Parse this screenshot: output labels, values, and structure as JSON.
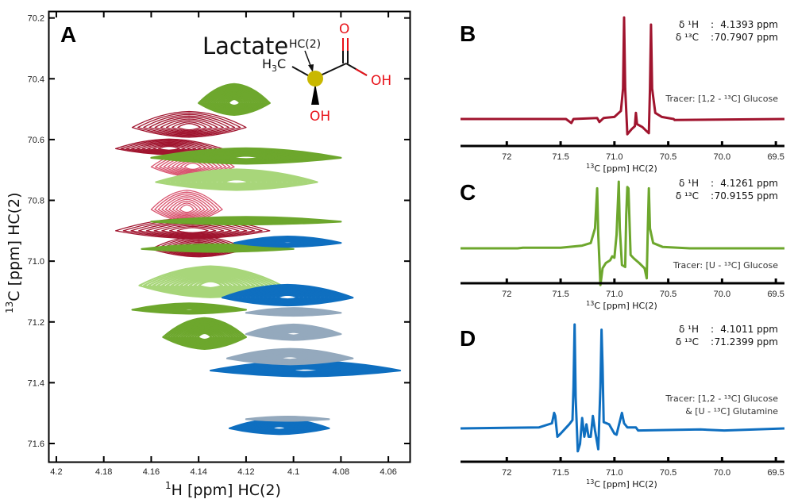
{
  "chart_data": [
    {
      "id": "A",
      "type": "contour",
      "panel_label": "A",
      "title": "Lactate",
      "xlabel": "1H [ppm] HC(2)",
      "xlabel_parts": {
        "sup": "1",
        "rest": "H [ppm] HC(2)"
      },
      "ylabel": "13C [ppm] HC(2)",
      "ylabel_parts": {
        "sup": "13",
        "rest": "C [ppm] HC(2)"
      },
      "xlim": [
        4.203,
        4.051
      ],
      "ylim": [
        70.18,
        71.66
      ],
      "x_reversed": true,
      "y_reversed": true,
      "xticks": [
        "4.2",
        "4.18",
        "4.16",
        "4.14",
        "4.12",
        "4.1",
        "4.08",
        "4.06"
      ],
      "xtick_values": [
        4.2,
        4.18,
        4.16,
        4.14,
        4.12,
        4.1,
        4.08,
        4.06
      ],
      "yticks": [
        "70.2",
        "70.4",
        "70.6",
        "70.8",
        "71.0",
        "71.2",
        "71.4",
        "71.6"
      ],
      "ytick_values": [
        70.2,
        70.4,
        70.6,
        70.8,
        71.0,
        71.2,
        71.4,
        71.6
      ],
      "series": [
        {
          "name": "[1,2-13C] Glucose (dark)",
          "color": "#a0142e",
          "style": "lines",
          "bands": [
            {
              "c13": 70.56,
              "h_left": 4.168,
              "h_right": 4.12,
              "thick": 0.05
            },
            {
              "c13": 70.63,
              "h_left": 4.175,
              "h_right": 4.13,
              "thick": 0.03
            },
            {
              "c13": 70.9,
              "h_left": 4.175,
              "h_right": 4.11,
              "thick": 0.04
            },
            {
              "c13": 70.96,
              "h_left": 4.16,
              "h_right": 4.12,
              "thick": 0.04
            }
          ]
        },
        {
          "name": "[1,2-13C] Glucose (light)",
          "color": "#d9546f",
          "style": "lines",
          "bands": [
            {
              "c13": 70.69,
              "h_left": 4.16,
              "h_right": 4.125,
              "thick": 0.05
            },
            {
              "c13": 70.83,
              "h_left": 4.16,
              "h_right": 4.13,
              "thick": 0.06
            }
          ]
        },
        {
          "name": "[U-13C] Glucose (dark)",
          "color": "#6da72d",
          "style": "fill",
          "bands": [
            {
              "c13": 70.48,
              "h_left": 4.14,
              "h_right": 4.11,
              "thick": 0.06
            },
            {
              "c13": 70.66,
              "h_left": 4.16,
              "h_right": 4.08,
              "thick": 0.03
            },
            {
              "c13": 70.87,
              "h_left": 4.16,
              "h_right": 4.08,
              "thick": 0.015
            },
            {
              "c13": 70.96,
              "h_left": 4.164,
              "h_right": 4.1,
              "thick": 0.015
            },
            {
              "c13": 71.16,
              "h_left": 4.168,
              "h_right": 4.12,
              "thick": 0.02
            },
            {
              "c13": 71.25,
              "h_left": 4.155,
              "h_right": 4.12,
              "thick": 0.06
            }
          ]
        },
        {
          "name": "[U-13C] Glucose (light)",
          "color": "#a8d67a",
          "style": "fill",
          "bands": [
            {
              "c13": 70.74,
              "h_left": 4.158,
              "h_right": 4.09,
              "thick": 0.04
            },
            {
              "c13": 71.08,
              "h_left": 4.165,
              "h_right": 4.105,
              "thick": 0.06
            }
          ]
        },
        {
          "name": "[1,2-13C] Glucose & [U-13C] Glutamine (dark)",
          "color": "#0f6fc0",
          "style": "fill",
          "bands": [
            {
              "c13": 70.94,
              "h_left": 4.125,
              "h_right": 4.08,
              "thick": 0.02
            },
            {
              "c13": 71.12,
              "h_left": 4.13,
              "h_right": 4.075,
              "thick": 0.04
            },
            {
              "c13": 71.36,
              "h_left": 4.135,
              "h_right": 4.055,
              "thick": 0.03
            },
            {
              "c13": 71.55,
              "h_left": 4.127,
              "h_right": 4.085,
              "thick": 0.03
            }
          ]
        },
        {
          "name": "[1,2-13C] Glucose & [U-13C] Glutamine (light)",
          "color": "#94a9bd",
          "style": "fill",
          "bands": [
            {
              "c13": 71.17,
              "h_left": 4.12,
              "h_right": 4.08,
              "thick": 0.015
            },
            {
              "c13": 71.24,
              "h_left": 4.12,
              "h_right": 4.08,
              "thick": 0.03
            },
            {
              "c13": 71.32,
              "h_left": 4.128,
              "h_right": 4.075,
              "thick": 0.03
            },
            {
              "c13": 71.52,
              "h_left": 4.12,
              "h_right": 4.085,
              "thick": 0.008
            }
          ]
        }
      ]
    },
    {
      "id": "B",
      "type": "line",
      "panel_label": "B",
      "xlabel": "13C [ppm] HC(2)",
      "xlabel_parts": {
        "sup": "13",
        "rest": "C [ppm] HC(2)"
      },
      "xlim": [
        72.43,
        69.42
      ],
      "x_reversed": true,
      "xticks": [
        "72",
        "71.5",
        "71.0",
        "70.5",
        "70.0",
        "69.5"
      ],
      "xtick_values": [
        72,
        71.5,
        71.0,
        70.5,
        70.0,
        69.5
      ],
      "color": "#a0142e",
      "shift_1H": {
        "label": "δ ¹H",
        "sep": ":",
        "value": "4.1393 ppm"
      },
      "shift_13C": {
        "label": "δ ¹³C",
        "sep": ":",
        "value": "70.7907 ppm"
      },
      "tracer_lines": [
        "Tracer: [1,2 - ¹³C] Glucose"
      ],
      "ylim": [
        -0.2,
        1.0
      ],
      "points": [
        [
          72.43,
          0
        ],
        [
          71.45,
          0
        ],
        [
          71.4,
          -0.04
        ],
        [
          71.38,
          0
        ],
        [
          71.16,
          0.01
        ],
        [
          71.14,
          -0.03
        ],
        [
          71.1,
          0.01
        ],
        [
          71.0,
          0.02
        ],
        [
          70.94,
          0.08
        ],
        [
          70.92,
          0.3
        ],
        [
          70.91,
          1.0
        ],
        [
          70.9,
          0.3
        ],
        [
          70.88,
          -0.15
        ],
        [
          70.84,
          -0.1
        ],
        [
          70.81,
          -0.07
        ],
        [
          70.8,
          0.06
        ],
        [
          70.79,
          -0.05
        ],
        [
          70.74,
          -0.08
        ],
        [
          70.7,
          -0.12
        ],
        [
          70.68,
          -0.14
        ],
        [
          70.67,
          0.3
        ],
        [
          70.66,
          0.93
        ],
        [
          70.65,
          0.3
        ],
        [
          70.62,
          0.06
        ],
        [
          70.56,
          0.02
        ],
        [
          70.45,
          0.0
        ],
        [
          70.44,
          -0.01
        ],
        [
          69.42,
          0
        ]
      ]
    },
    {
      "id": "C",
      "type": "line",
      "panel_label": "C",
      "xlabel": "13C [ppm] HC(2)",
      "xlabel_parts": {
        "sup": "13",
        "rest": "C [ppm] HC(2)"
      },
      "xlim": [
        72.43,
        69.42
      ],
      "x_reversed": true,
      "xticks": [
        "72",
        "71.5",
        "71.0",
        "70.5",
        "70.0",
        "69.5"
      ],
      "xtick_values": [
        72,
        71.5,
        71.0,
        70.5,
        70.0,
        69.5
      ],
      "color": "#6da72d",
      "shift_1H": {
        "label": "δ ¹H",
        "sep": ":",
        "value": "4.1261 ppm"
      },
      "shift_13C": {
        "label": "δ ¹³C",
        "sep": ":",
        "value": "70.9155 ppm"
      },
      "tracer_lines": [
        "Tracer: [U - ¹³C] Glucose"
      ],
      "ylim": [
        -0.55,
        1.0
      ],
      "points": [
        [
          72.43,
          0
        ],
        [
          71.9,
          0
        ],
        [
          71.85,
          0.01
        ],
        [
          71.5,
          0.01
        ],
        [
          71.3,
          0.04
        ],
        [
          71.22,
          0.08
        ],
        [
          71.18,
          0.3
        ],
        [
          71.16,
          0.9
        ],
        [
          71.15,
          0.2
        ],
        [
          71.13,
          -0.55
        ],
        [
          71.11,
          -0.3
        ],
        [
          71.08,
          -0.22
        ],
        [
          71.04,
          -0.18
        ],
        [
          71.02,
          -0.12
        ],
        [
          71.0,
          -0.14
        ],
        [
          70.98,
          0.2
        ],
        [
          70.96,
          1.0
        ],
        [
          70.95,
          0.3
        ],
        [
          70.93,
          -0.25
        ],
        [
          70.9,
          -0.28
        ],
        [
          70.89,
          0.5
        ],
        [
          70.88,
          0.92
        ],
        [
          70.87,
          0.9
        ],
        [
          70.85,
          -0.1
        ],
        [
          70.82,
          -0.15
        ],
        [
          70.77,
          -0.22
        ],
        [
          70.72,
          -0.3
        ],
        [
          70.7,
          -0.45
        ],
        [
          70.69,
          0.3
        ],
        [
          70.68,
          0.9
        ],
        [
          70.67,
          0.3
        ],
        [
          70.64,
          0.08
        ],
        [
          70.55,
          0.02
        ],
        [
          70.3,
          0.0
        ],
        [
          69.42,
          0
        ]
      ]
    },
    {
      "id": "D",
      "type": "line",
      "panel_label": "D",
      "xlabel": "13C [ppm] HC(2)",
      "xlabel_parts": {
        "sup": "13",
        "rest": "C [ppm] HC(2)"
      },
      "xlim": [
        72.43,
        69.42
      ],
      "x_reversed": true,
      "xticks": [
        "72",
        "71.5",
        "71.0",
        "70.5",
        "70.0",
        "69.5"
      ],
      "xtick_values": [
        72,
        71.5,
        71.0,
        70.5,
        70.0,
        69.5
      ],
      "color": "#0f6fc0",
      "shift_1H": {
        "label": "δ ¹H",
        "sep": ":",
        "value": "4.1011 ppm"
      },
      "shift_13C": {
        "label": "δ ¹³C",
        "sep": ":",
        "value": "71.2399 ppm"
      },
      "tracer_lines": [
        "Tracer: [1,2 - ¹³C] Glucose",
        "& [U - ¹³C] Glutamine"
      ],
      "ylim": [
        -0.22,
        1.0
      ],
      "points": [
        [
          72.43,
          0
        ],
        [
          71.7,
          0.01
        ],
        [
          71.58,
          0.05
        ],
        [
          71.56,
          0.15
        ],
        [
          71.55,
          0.12
        ],
        [
          71.53,
          -0.08
        ],
        [
          71.5,
          -0.05
        ],
        [
          71.42,
          0.04
        ],
        [
          71.39,
          0.08
        ],
        [
          71.38,
          0.4
        ],
        [
          71.37,
          1.0
        ],
        [
          71.36,
          0.3
        ],
        [
          71.34,
          -0.22
        ],
        [
          71.32,
          -0.15
        ],
        [
          71.3,
          0.1
        ],
        [
          71.28,
          -0.08
        ],
        [
          71.26,
          0.04
        ],
        [
          71.24,
          -0.08
        ],
        [
          71.22,
          -0.08
        ],
        [
          71.2,
          0.12
        ],
        [
          71.18,
          -0.02
        ],
        [
          71.15,
          -0.2
        ],
        [
          71.13,
          0.4
        ],
        [
          71.12,
          0.95
        ],
        [
          71.11,
          0.6
        ],
        [
          71.1,
          0.06
        ],
        [
          71.05,
          0.04
        ],
        [
          71.0,
          -0.05
        ],
        [
          70.98,
          -0.06
        ],
        [
          70.93,
          0.15
        ],
        [
          70.91,
          0.05
        ],
        [
          70.88,
          0.01
        ],
        [
          70.8,
          0.01
        ],
        [
          70.78,
          -0.02
        ],
        [
          70.2,
          -0.01
        ],
        [
          69.98,
          -0.02
        ],
        [
          69.42,
          0
        ]
      ]
    }
  ],
  "molecule": {
    "name": "Lactate",
    "atoms": {
      "ch3": "H3C",
      "c2_label": "HC(2)",
      "carbonyl_o": "O",
      "acid_oh": "OH",
      "alcohol_oh": "OH"
    },
    "highlight_color": "#c9b800",
    "hetero_color": "#e8131a"
  }
}
